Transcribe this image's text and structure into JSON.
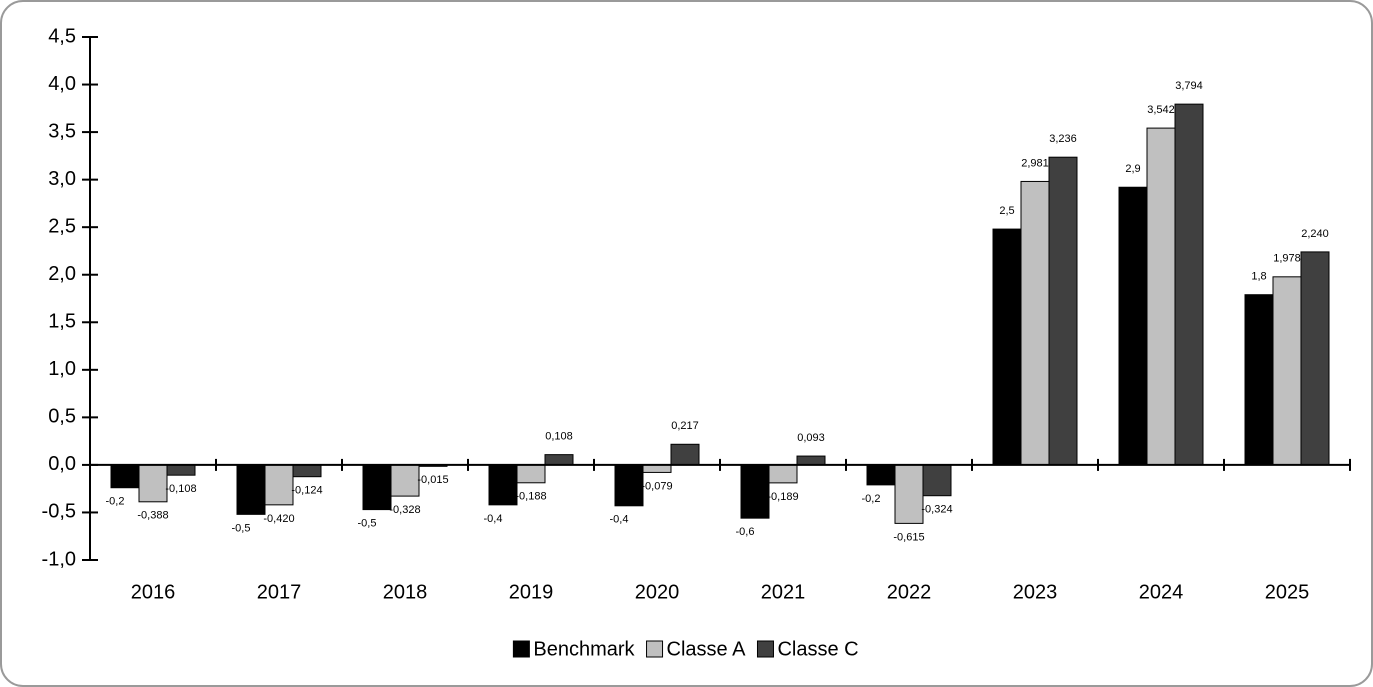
{
  "chart_data": {
    "type": "bar",
    "categories": [
      "2016",
      "2017",
      "2018",
      "2019",
      "2020",
      "2021",
      "2022",
      "2023",
      "2024",
      "2025"
    ],
    "series": [
      {
        "name": "Benchmark",
        "color": "#000000",
        "values": [
          -0.24,
          -0.52,
          -0.47,
          -0.42,
          -0.43,
          -0.56,
          -0.21,
          2.48,
          2.92,
          1.79
        ],
        "value_labels": [
          "-0,2",
          "-0,5",
          "-0,5",
          "-0,4",
          "-0,4",
          "-0,6",
          "-0,2",
          "2,5",
          "2,9",
          "1,8"
        ]
      },
      {
        "name": "Classe A",
        "color": "#c0c0c0",
        "values": [
          -0.388,
          -0.42,
          -0.328,
          -0.188,
          -0.079,
          -0.189,
          -0.615,
          2.981,
          3.542,
          1.978
        ],
        "value_labels": [
          "-0,388",
          "-0,420",
          "-0,328",
          "-0,188",
          "-0,079",
          "-0,189",
          "-0,615",
          "2,981",
          "3,542",
          "1,978"
        ]
      },
      {
        "name": "Classe C",
        "color": "#404040",
        "values": [
          -0.108,
          -0.124,
          -0.015,
          0.108,
          0.217,
          0.093,
          -0.324,
          3.236,
          3.794,
          2.24
        ],
        "value_labels": [
          "-0,108",
          "-0,124",
          "-0,015",
          "0,108",
          "0,217",
          "0,093",
          "-0,324",
          "3,236",
          "3,794",
          "2,240"
        ]
      }
    ],
    "ylim": [
      -1.0,
      4.5
    ],
    "yticks": [
      {
        "value": -1.0,
        "label": "-1,0"
      },
      {
        "value": -0.5,
        "label": "-0,5"
      },
      {
        "value": 0,
        "label": "0,0"
      },
      {
        "value": 0.5,
        "label": "0,5"
      },
      {
        "value": 1.0,
        "label": "1,0"
      },
      {
        "value": 1.5,
        "label": "1,5"
      },
      {
        "value": 2.0,
        "label": "2,0"
      },
      {
        "value": 2.5,
        "label": "2,5"
      },
      {
        "value": 3.0,
        "label": "3,0"
      },
      {
        "value": 3.5,
        "label": "3,5"
      },
      {
        "value": 4.0,
        "label": "4,0"
      },
      {
        "value": 4.5,
        "label": "4,5"
      }
    ],
    "grid": false,
    "legend": "bottom"
  }
}
